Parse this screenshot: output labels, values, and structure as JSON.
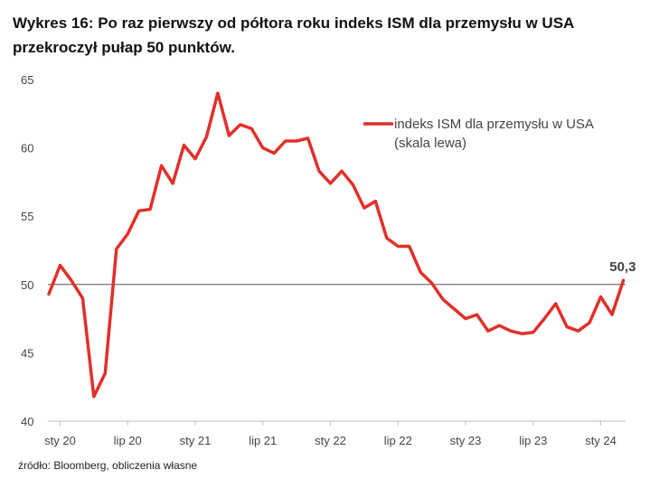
{
  "title": "Wykres 16: Po raz pierwszy od półtora roku indeks ISM dla przemysłu w USA przekroczył pułap 50 punktów.",
  "source": "źródło: Bloomberg, obliczenia własne",
  "chart_data": {
    "type": "line",
    "title": "Wykres 16: Po raz pierwszy od półtora roku indeks ISM dla przemysłu w USA przekroczył pułap 50 punktów.",
    "xlabel": "",
    "ylabel": "",
    "ylim": [
      40,
      65
    ],
    "y_ticks": [
      40,
      45,
      50,
      55,
      60,
      65
    ],
    "x_ticks": [
      "sty 20",
      "lip 20",
      "sty 21",
      "lip 21",
      "sty 22",
      "lip 22",
      "sty 23",
      "lip 23",
      "sty 24"
    ],
    "grid": false,
    "reference_line": 50,
    "legend_position": "top-right",
    "callout": "50,3",
    "series": [
      {
        "name": "indeks ISM dla przemysłu w USA",
        "name_note": "(skala lewa)",
        "color": "#e0302a",
        "x": [
          "2019-12",
          "2020-01",
          "2020-02",
          "2020-03",
          "2020-04",
          "2020-05",
          "2020-06",
          "2020-07",
          "2020-08",
          "2020-09",
          "2020-10",
          "2020-11",
          "2020-12",
          "2021-01",
          "2021-02",
          "2021-03",
          "2021-04",
          "2021-05",
          "2021-06",
          "2021-07",
          "2021-08",
          "2021-09",
          "2021-10",
          "2021-11",
          "2021-12",
          "2022-01",
          "2022-02",
          "2022-03",
          "2022-04",
          "2022-05",
          "2022-06",
          "2022-07",
          "2022-08",
          "2022-09",
          "2022-10",
          "2022-11",
          "2022-12",
          "2023-01",
          "2023-02",
          "2023-03",
          "2023-04",
          "2023-05",
          "2023-06",
          "2023-07",
          "2023-08",
          "2023-09",
          "2023-10",
          "2023-11",
          "2023-12",
          "2024-01",
          "2024-02",
          "2024-03"
        ],
        "values": [
          49.3,
          51.4,
          50.3,
          49.0,
          41.8,
          43.5,
          52.6,
          53.7,
          55.4,
          55.5,
          58.7,
          57.4,
          60.2,
          59.2,
          60.8,
          64.0,
          60.9,
          61.7,
          61.4,
          60.0,
          59.6,
          60.5,
          60.5,
          60.7,
          58.3,
          57.4,
          58.3,
          57.3,
          55.6,
          56.1,
          53.4,
          52.8,
          52.8,
          50.9,
          50.1,
          48.9,
          48.2,
          47.5,
          47.8,
          46.6,
          47.0,
          46.6,
          46.4,
          46.5,
          47.5,
          48.6,
          46.9,
          46.6,
          47.2,
          49.1,
          47.8,
          50.3
        ]
      }
    ]
  }
}
